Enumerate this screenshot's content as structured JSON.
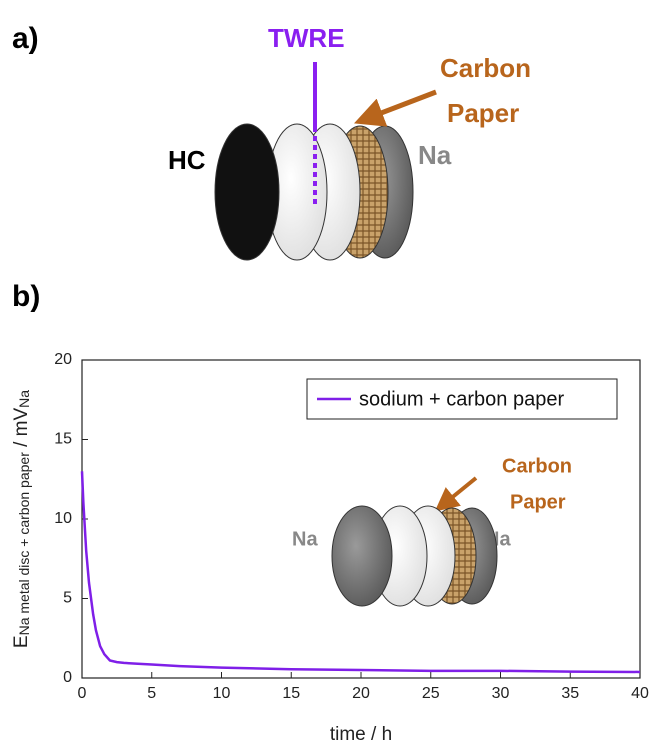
{
  "panel_a": {
    "label": "a)",
    "twre": "TWRE",
    "carbon_paper": [
      "Carbon",
      "Paper"
    ],
    "hc": "HC",
    "na": "Na"
  },
  "panel_b": {
    "label": "b)",
    "inset": {
      "na_left": "Na",
      "na_right": "Na",
      "carbon_paper": [
        "Carbon",
        "Paper"
      ]
    }
  },
  "chart_data": {
    "type": "line",
    "xlabel": "time / h",
    "ylabel": [
      "E",
      "Na metal disc + carbon paper",
      " / mV",
      "Na"
    ],
    "x": [
      0,
      0.1,
      0.3,
      0.5,
      0.8,
      1.0,
      1.3,
      1.6,
      2,
      2.5,
      3,
      4,
      5,
      7,
      10,
      15,
      20,
      25,
      30,
      35,
      40
    ],
    "series": [
      {
        "name": "sodium + carbon paper",
        "color": "#7f1fe8",
        "values": [
          13,
          11,
          8,
          6,
          4,
          3,
          2,
          1.5,
          1.1,
          1.0,
          0.95,
          0.9,
          0.85,
          0.75,
          0.65,
          0.55,
          0.5,
          0.45,
          0.45,
          0.4,
          0.38
        ]
      }
    ],
    "xlim": [
      0,
      40
    ],
    "xticks": [
      0,
      5,
      10,
      15,
      20,
      25,
      30,
      35,
      40
    ],
    "ylim": [
      0,
      20
    ],
    "yticks": [
      0,
      5,
      10,
      15,
      20
    ],
    "legend": "upper right"
  }
}
